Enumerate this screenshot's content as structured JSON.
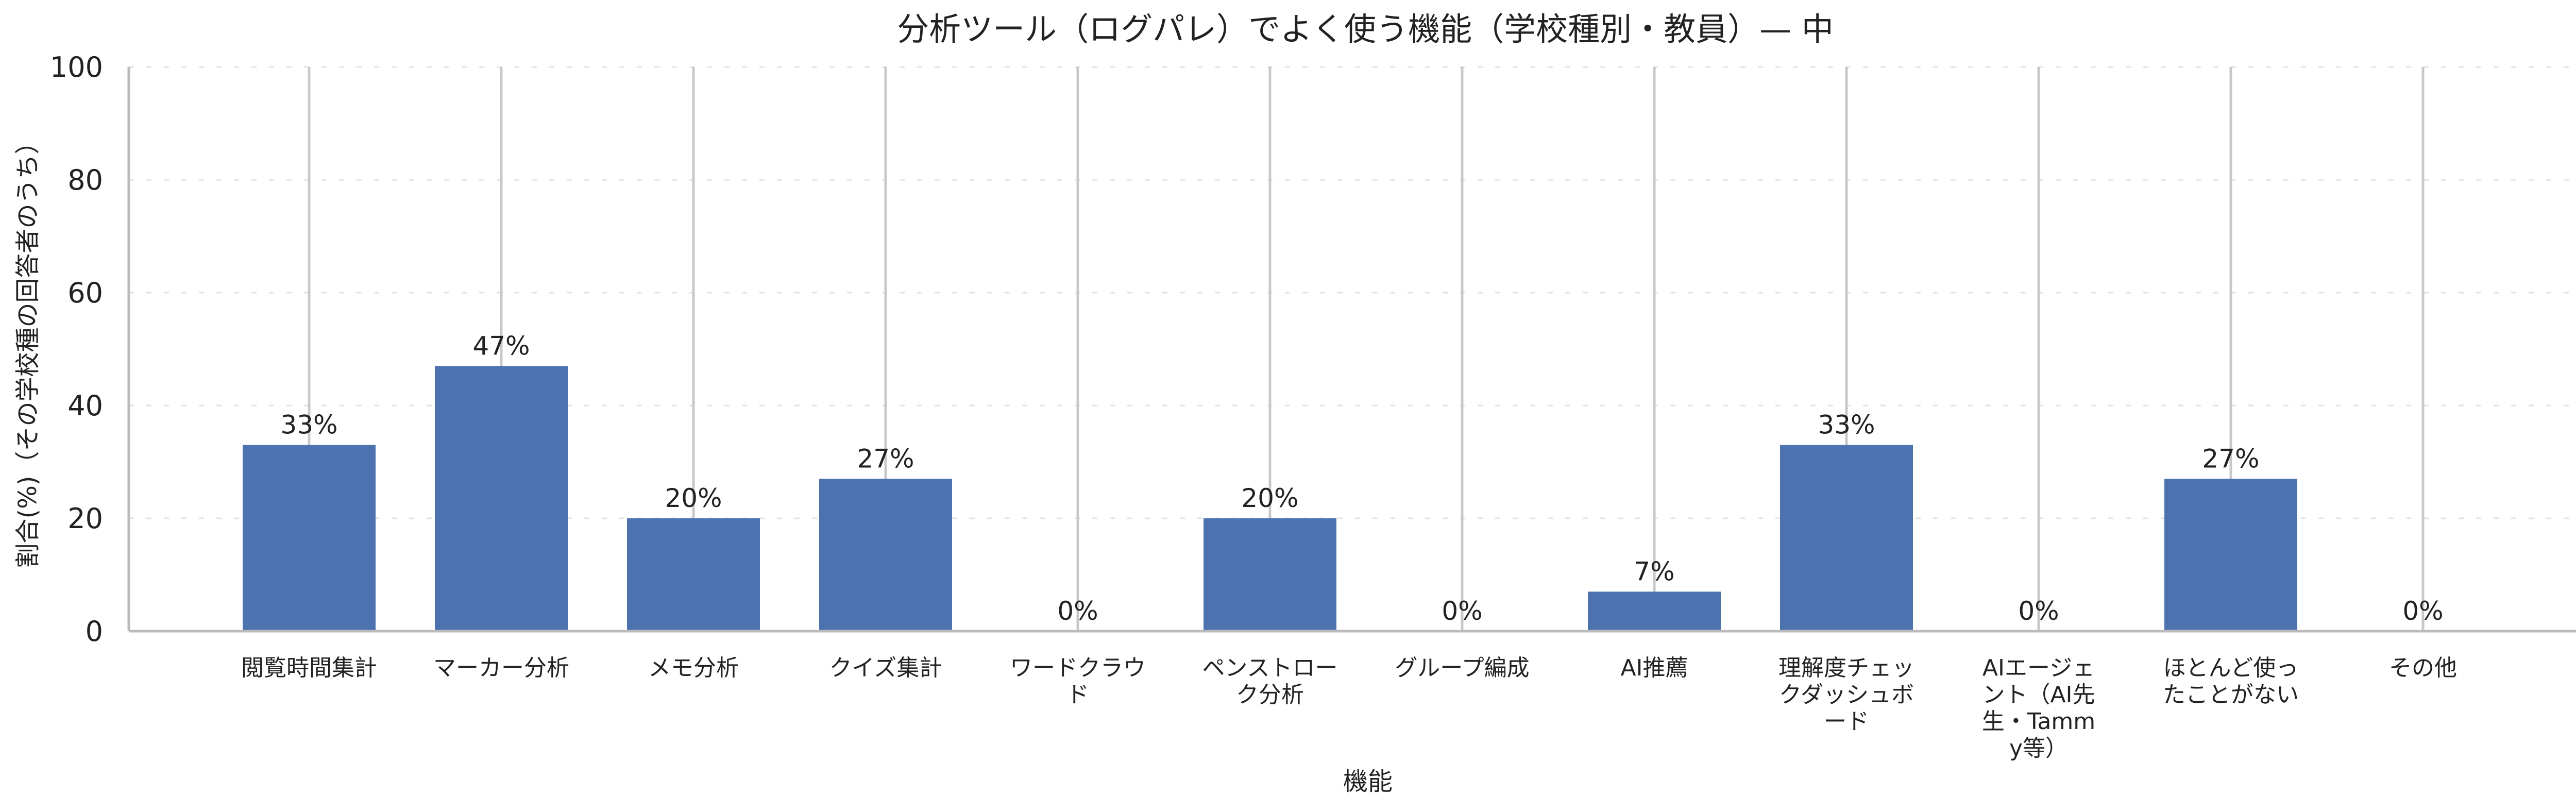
{
  "chart_data": {
    "type": "bar",
    "title": "分析ツール（ログパレ）でよく使う機能（学校種別・教員）— 中",
    "xlabel": "機能",
    "ylabel": "割合(%)（その学校種の回答者のうち）",
    "ylim": [
      0,
      100
    ],
    "yticks": [
      "0",
      "20",
      "40",
      "60",
      "80",
      "100"
    ],
    "grid": true,
    "bar_color": "#4c72b0",
    "categories": [
      [
        "閲覧時間集計"
      ],
      [
        "マーカー分析"
      ],
      [
        "メモ分析"
      ],
      [
        "クイズ集計"
      ],
      [
        "ワードクラウ",
        "ド"
      ],
      [
        "ペンストロー",
        "ク分析"
      ],
      [
        "グループ編成"
      ],
      [
        "AI推薦"
      ],
      [
        "理解度チェッ",
        "クダッシュボ",
        "ード"
      ],
      [
        "AIエージェ",
        "ント（AI先",
        "生・Tamm",
        "y等）"
      ],
      [
        "ほとんど使っ",
        "たことがない"
      ],
      [
        "その他"
      ]
    ],
    "values": [
      33,
      47,
      20,
      27,
      0,
      20,
      0,
      7,
      33,
      0,
      27,
      0
    ],
    "labels": [
      "33%",
      "47%",
      "20%",
      "27%",
      "0%",
      "20%",
      "0%",
      "7%",
      "33%",
      "0%",
      "27%",
      "0%"
    ]
  }
}
